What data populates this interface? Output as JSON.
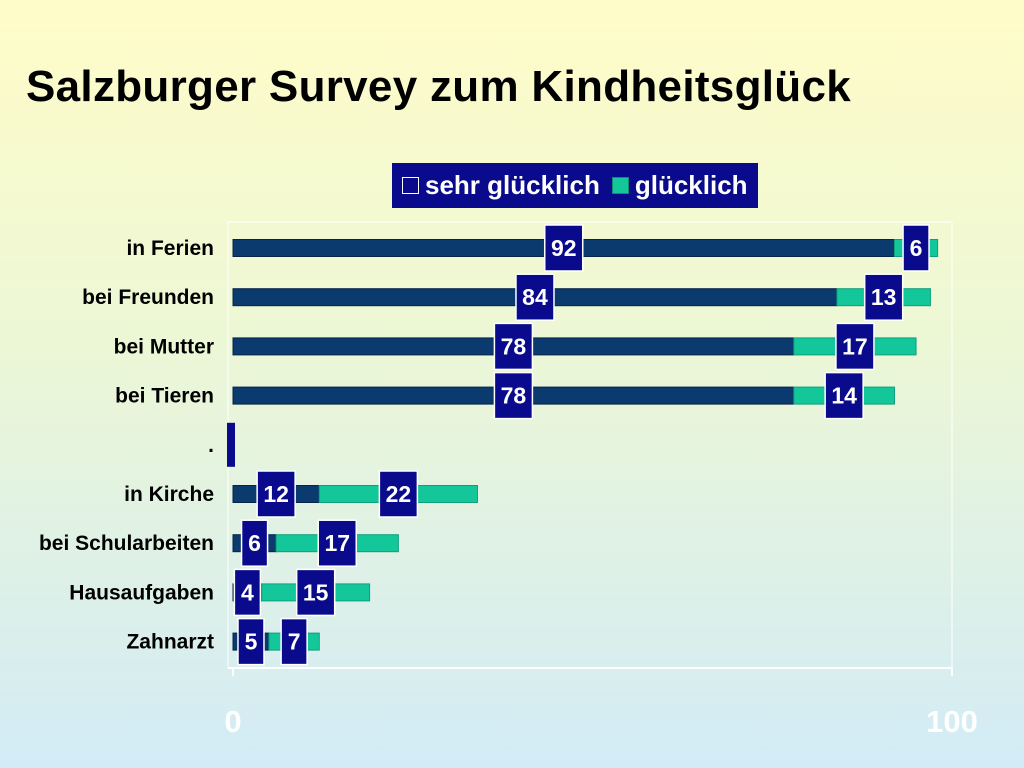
{
  "title": "Salzburger Survey zum Kindheitsglück",
  "chart_data": {
    "type": "bar",
    "orientation": "horizontal",
    "stacked": true,
    "title": "Salzburger Survey zum Kindheitsglück",
    "categories": [
      "in Ferien",
      "bei Freunden",
      "bei Mutter",
      "bei Tieren",
      ".",
      "in Kirche",
      "bei Schularbeiten",
      "Hausaufgaben",
      "Zahnarzt"
    ],
    "series": [
      {
        "name": "sehr glücklich",
        "values": [
          92,
          84,
          78,
          78,
          null,
          12,
          6,
          4,
          5
        ],
        "color": "#0a3a6e"
      },
      {
        "name": "glücklich",
        "values": [
          6,
          13,
          17,
          14,
          null,
          22,
          17,
          15,
          7
        ],
        "color": "#13c79a"
      }
    ],
    "xlim": [
      0,
      100
    ],
    "x_ticks": [
      "0",
      "100"
    ],
    "legend_position": "top",
    "grid": false,
    "label_box_color": "#0a0a8c"
  }
}
